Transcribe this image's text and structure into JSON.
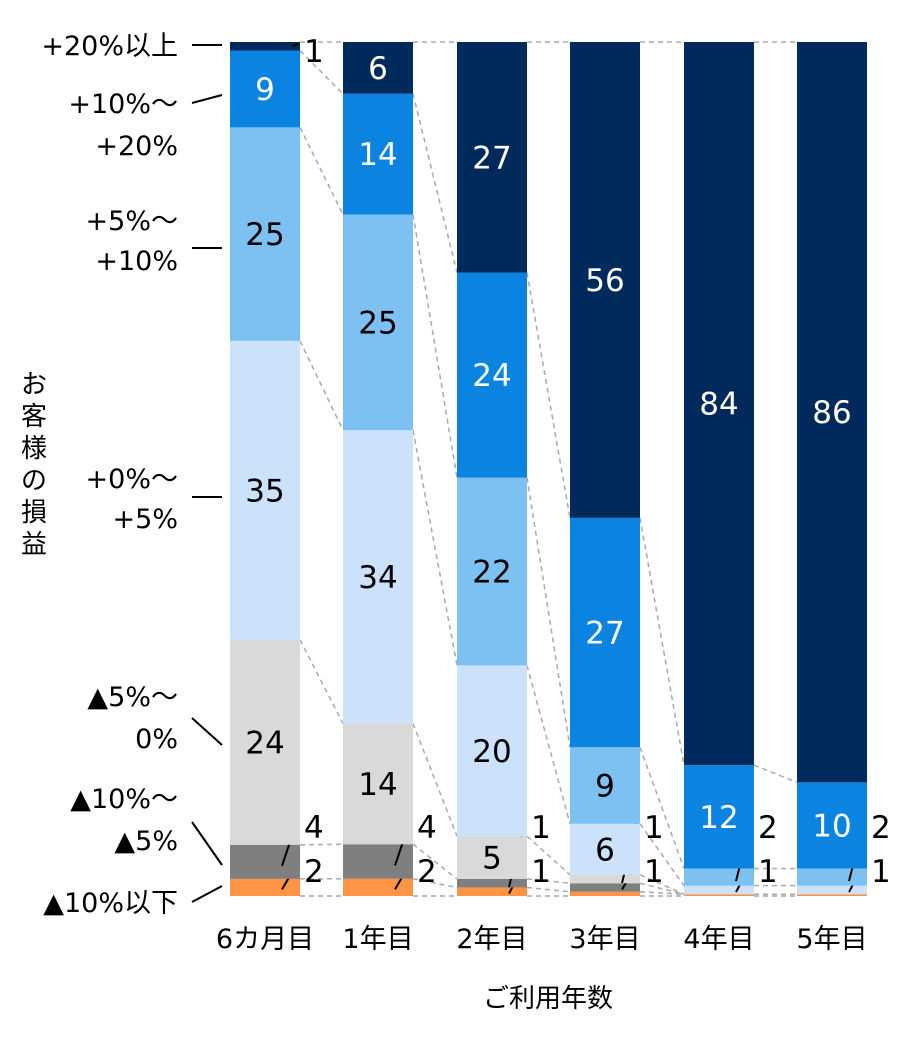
{
  "chart_data": {
    "type": "bar",
    "stacked": true,
    "xlabel": "ご利用年数",
    "ylabel": "お客様の損益",
    "ylim": [
      0,
      100
    ],
    "grid": false,
    "categories": [
      "6カ月目",
      "1年目",
      "2年目",
      "3年目",
      "4年目",
      "5年目"
    ],
    "series": [
      {
        "name": "▲10%以下",
        "color": "#ff9445",
        "values": [
          2,
          2,
          1,
          0.5,
          0.2,
          0.2
        ],
        "labels": [
          "2",
          "2",
          "1",
          null,
          null,
          null
        ]
      },
      {
        "name": "▲10%〜▲5%",
        "color": "#7f7f7f",
        "values": [
          4,
          4,
          1,
          1,
          0,
          0
        ],
        "labels": [
          "4",
          "4",
          "1",
          "1",
          null,
          null
        ]
      },
      {
        "name": "▲5%〜0%",
        "color": "#d9d9d9",
        "values": [
          24,
          14,
          5,
          1,
          0,
          0
        ],
        "labels": [
          "24",
          "14",
          "5",
          "1",
          null,
          null
        ]
      },
      {
        "name": "+0%〜+5%",
        "color": "#cbe2fa",
        "values": [
          35,
          34,
          20,
          6,
          1,
          1
        ],
        "labels": [
          "35",
          "34",
          "20",
          "6",
          "1",
          "1"
        ]
      },
      {
        "name": "+5%〜+10%",
        "color": "#7dc1f3",
        "values": [
          25,
          25,
          22,
          9,
          2,
          2
        ],
        "labels": [
          "25",
          "25",
          "22",
          "9",
          "2",
          "2"
        ]
      },
      {
        "name": "+10%〜+20%",
        "color": "#0a83e1",
        "values": [
          9,
          14,
          24,
          27,
          12,
          10
        ],
        "labels": [
          "9",
          "14",
          "24",
          "27",
          "12",
          "10"
        ]
      },
      {
        "name": "+20%以上",
        "color": "#00295c",
        "values": [
          1,
          6,
          27,
          56,
          84,
          86
        ],
        "labels": [
          "1",
          "6",
          "27",
          "56",
          "84",
          "86"
        ]
      }
    ]
  }
}
